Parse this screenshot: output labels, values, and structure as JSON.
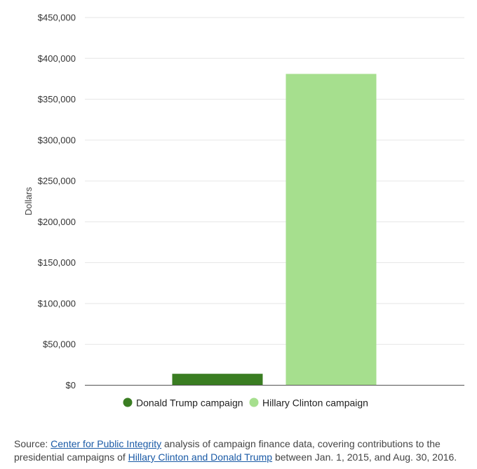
{
  "chart_data": {
    "type": "bar",
    "categories": [
      "Donald Trump campaign",
      "Hillary Clinton campaign"
    ],
    "values": [
      14000,
      381000
    ],
    "colors": [
      "#3a7d22",
      "#a6df8e"
    ],
    "title": "",
    "xlabel": "",
    "ylabel": "Dollars",
    "ylim": [
      0,
      450000
    ],
    "yticks": [
      0,
      50000,
      100000,
      150000,
      200000,
      250000,
      300000,
      350000,
      400000,
      450000
    ],
    "ytick_labels": [
      "$0",
      "$50,000",
      "$100,000",
      "$150,000",
      "$200,000",
      "$250,000",
      "$300,000",
      "$350,000",
      "$400,000",
      "$450,000"
    ],
    "grid": true,
    "legend_position": "bottom"
  },
  "source": {
    "prefix": "Source: ",
    "link1": "Center for Public Integrity",
    "middle": " analysis of campaign finance data, covering contributions to the presidential campaigns of ",
    "link2": "Hillary Clinton and Donald Trump",
    "suffix": " between Jan. 1, 2015, and Aug. 30, 2016."
  }
}
